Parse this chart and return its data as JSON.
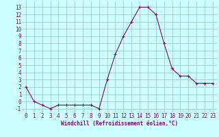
{
  "x": [
    0,
    1,
    2,
    3,
    4,
    5,
    6,
    7,
    8,
    9,
    10,
    11,
    12,
    13,
    14,
    15,
    16,
    17,
    18,
    19,
    20,
    21,
    22,
    23
  ],
  "y": [
    2,
    0,
    -0.5,
    -1,
    -0.5,
    -0.5,
    -0.5,
    -0.5,
    -0.5,
    -1,
    3,
    6.5,
    9,
    11,
    13,
    13,
    12,
    8,
    4.5,
    3.5,
    3.5,
    2.5,
    2.5,
    2.5
  ],
  "xlabel": "Windchill (Refroidissement éolien,°C)",
  "yticks": [
    -1,
    0,
    1,
    2,
    3,
    4,
    5,
    6,
    7,
    8,
    9,
    10,
    11,
    12,
    13
  ],
  "xticks": [
    0,
    1,
    2,
    3,
    4,
    5,
    6,
    7,
    8,
    9,
    10,
    11,
    12,
    13,
    14,
    15,
    16,
    17,
    18,
    19,
    20,
    21,
    22,
    23
  ],
  "ylim": [
    -1.5,
    13.8
  ],
  "xlim": [
    -0.5,
    23.5
  ],
  "line_color": "#800080",
  "marker": "+",
  "bg_color": "#ccffff",
  "grid_color": "#99cccc",
  "xlabel_fontsize": 5.5,
  "tick_fontsize": 5.5
}
